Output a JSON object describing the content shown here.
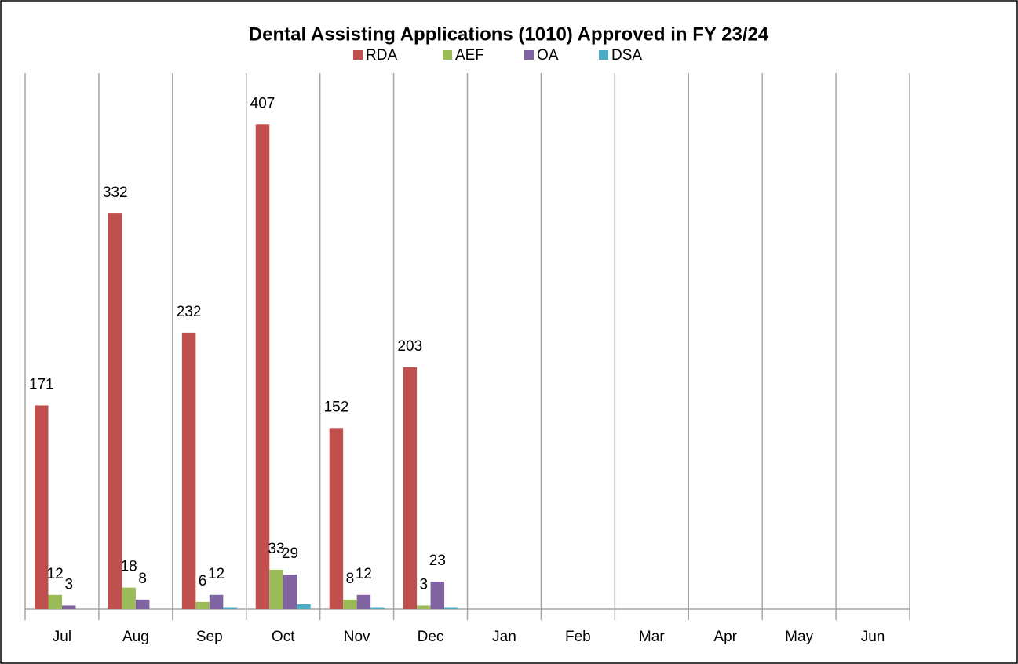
{
  "chart_data": {
    "type": "bar",
    "title": "Dental Assisting Applications (1010) Approved in FY 23/24",
    "categories": [
      "Jul",
      "Aug",
      "Sep",
      "Oct",
      "Nov",
      "Dec",
      "Jan",
      "Feb",
      "Mar",
      "Apr",
      "May",
      "Jun"
    ],
    "series": [
      {
        "name": "RDA",
        "color": "#c0504d",
        "data_labels": true,
        "values": [
          171,
          332,
          232,
          407,
          152,
          203,
          null,
          null,
          null,
          null,
          null,
          null
        ]
      },
      {
        "name": "AEF",
        "color": "#9bbb59",
        "data_labels": true,
        "values": [
          12,
          18,
          6,
          33,
          8,
          3,
          null,
          null,
          null,
          null,
          null,
          null
        ]
      },
      {
        "name": "OA",
        "color": "#8064a2",
        "data_labels": true,
        "values": [
          3,
          8,
          12,
          29,
          12,
          23,
          null,
          null,
          null,
          null,
          null,
          null
        ]
      },
      {
        "name": "DSA",
        "color": "#4bacc6",
        "data_labels": false,
        "values": [
          0,
          0,
          1,
          4,
          1,
          1,
          null,
          null,
          null,
          null,
          null,
          null
        ]
      }
    ],
    "ylim": [
      0,
      450
    ],
    "legend": "top",
    "category_separators": true
  }
}
